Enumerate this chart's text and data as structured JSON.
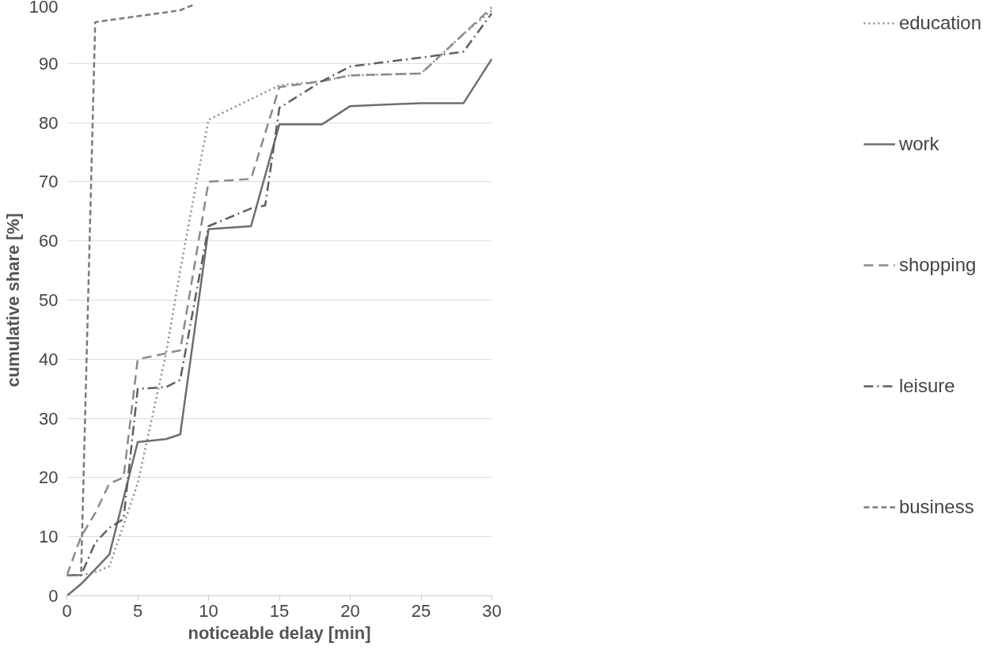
{
  "chart_data": {
    "type": "line",
    "xlabel": "noticeable delay [min]",
    "ylabel": "cumulative share [%]",
    "xlim": [
      0,
      30
    ],
    "ylim": [
      0,
      100
    ],
    "xticks": [
      0,
      5,
      10,
      15,
      20,
      25,
      30
    ],
    "yticks": [
      0,
      10,
      20,
      30,
      40,
      50,
      60,
      70,
      80,
      90,
      100
    ],
    "grid": "y",
    "legend": "right",
    "series": [
      {
        "name": "education",
        "color": "#8a8a8a",
        "line_style": "dotted",
        "x": [
          0,
          1,
          2,
          3,
          4,
          5,
          6,
          7,
          8,
          9,
          10,
          15,
          18,
          20,
          25,
          28,
          30
        ],
        "values": [
          3.5,
          3.5,
          4,
          5,
          12,
          19,
          30,
          41,
          55,
          68,
          80.5,
          86.3,
          87,
          88,
          88.3,
          95,
          99
        ]
      },
      {
        "name": "work",
        "color": "#6e6e6e",
        "line_style": "solid",
        "x": [
          0,
          1,
          2,
          3,
          5,
          7,
          8,
          10,
          13,
          15,
          18,
          20,
          25,
          28,
          30
        ],
        "values": [
          0,
          2,
          4.5,
          7,
          26,
          26.5,
          27.3,
          62,
          62.5,
          79.7,
          79.7,
          82.8,
          83.3,
          83.3,
          90.8
        ]
      },
      {
        "name": "shopping",
        "color": "#8a8a8a",
        "line_style": "dashed",
        "x": [
          0,
          1,
          2,
          3,
          4,
          5,
          7,
          8,
          10,
          13,
          15,
          18,
          20,
          25,
          28,
          30
        ],
        "values": [
          3.5,
          10,
          14,
          19,
          20,
          40,
          41,
          41.5,
          70,
          70.5,
          86,
          87,
          88,
          88.3,
          95,
          99.5
        ]
      },
      {
        "name": "leisure",
        "color": "#5e5e5e",
        "line_style": "dashdot",
        "x": [
          0,
          1,
          2,
          3,
          4,
          5,
          7,
          8,
          10,
          13,
          14,
          15,
          18,
          20,
          25,
          28,
          30
        ],
        "values": [
          3.5,
          3.5,
          9,
          11.5,
          13,
          35,
          35.3,
          36.5,
          62.5,
          65.5,
          66,
          82.5,
          87,
          89.5,
          91,
          92,
          98.5
        ]
      },
      {
        "name": "business",
        "color": "#7a7a7a",
        "line_style": "shortdash",
        "x": [
          0,
          1,
          2,
          8,
          9
        ],
        "values": [
          3.5,
          3.5,
          97,
          99,
          100
        ]
      }
    ]
  }
}
